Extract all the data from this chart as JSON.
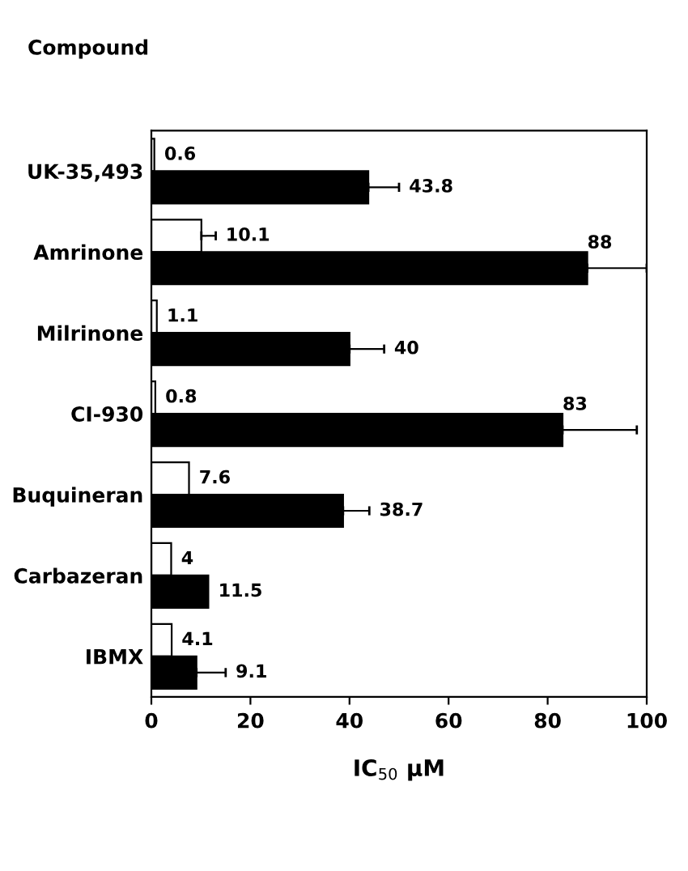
{
  "chart_data": {
    "type": "bar",
    "orientation": "horizontal",
    "title": "Compound",
    "xlabel": "IC$_{50}$ μM",
    "categories": [
      "UK-35,493",
      "Amrinone",
      "Milrinone",
      "CI-930",
      "Buquineran",
      "Carbazeran",
      "IBMX"
    ],
    "series": [
      {
        "color": "#ffffff",
        "values": [
          0.6,
          10.1,
          1.1,
          0.8,
          7.6,
          4,
          4.1
        ],
        "errors": [
          null,
          [
            10.1,
            13
          ],
          null,
          null,
          null,
          null,
          null
        ]
      },
      {
        "color": "#000000",
        "values": [
          43.8,
          88,
          40,
          83,
          38.7,
          11.5,
          9.1
        ],
        "errors": [
          [
            43.8,
            50
          ],
          [
            88,
            100
          ],
          [
            40,
            47
          ],
          [
            83,
            98
          ],
          [
            38.7,
            44
          ],
          null,
          [
            9.1,
            15
          ]
        ]
      }
    ],
    "data_labels": true,
    "xlim": [
      0,
      100
    ],
    "xticks": [
      0,
      20,
      40,
      60,
      80,
      100
    ],
    "grid": false,
    "legend": false
  }
}
